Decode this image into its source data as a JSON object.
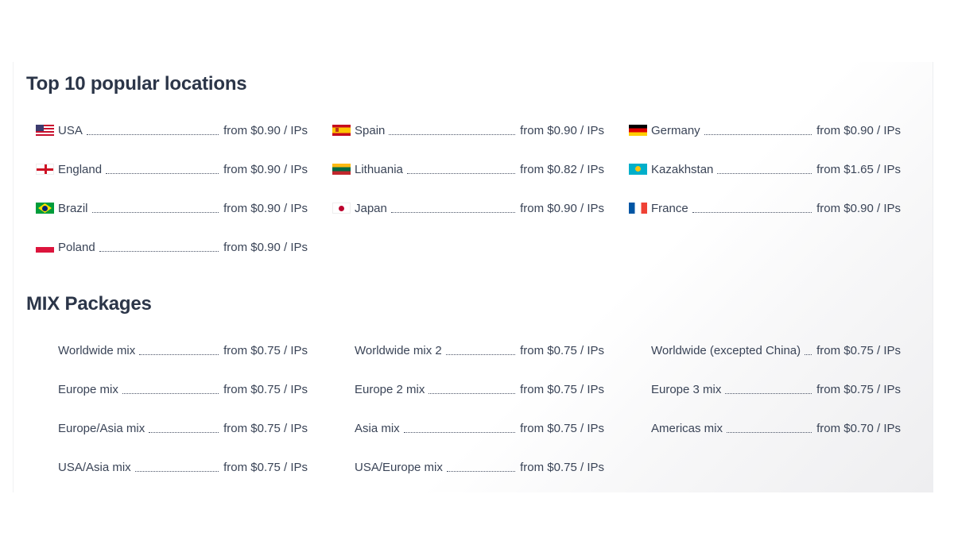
{
  "sections": {
    "top_title": "Top 10 popular locations",
    "mix_title": "MIX Packages"
  },
  "locations": [
    {
      "name": "USA",
      "price": "from $0.90 / IPs",
      "flag": "us-flag"
    },
    {
      "name": "Spain",
      "price": "from $0.90 / IPs",
      "flag": "es-flag"
    },
    {
      "name": "Germany",
      "price": "from $0.90 / IPs",
      "flag": "de-flag"
    },
    {
      "name": "England",
      "price": "from $0.90 / IPs",
      "flag": "gb-eng-flag"
    },
    {
      "name": "Lithuania",
      "price": "from $0.82 / IPs",
      "flag": "lt-flag"
    },
    {
      "name": "Kazakhstan",
      "price": "from $1.65 / IPs",
      "flag": "kz-flag"
    },
    {
      "name": "Brazil",
      "price": "from $0.90 / IPs",
      "flag": "br-flag"
    },
    {
      "name": "Japan",
      "price": "from $0.90 / IPs",
      "flag": "jp-flag"
    },
    {
      "name": "France",
      "price": "from $0.90 / IPs",
      "flag": "fr-flag"
    },
    {
      "name": "Poland",
      "price": "from $0.90 / IPs",
      "flag": "pl-flag"
    }
  ],
  "mixes": [
    {
      "name": "Worldwide mix",
      "price": "from $0.75 / IPs"
    },
    {
      "name": "Worldwide mix 2",
      "price": "from $0.75 / IPs"
    },
    {
      "name": "Worldwide (excepted China)",
      "price": "from $0.75 / IPs"
    },
    {
      "name": "Europe mix",
      "price": "from $0.75 / IPs"
    },
    {
      "name": "Europe 2 mix",
      "price": "from $0.75 / IPs"
    },
    {
      "name": "Europe 3 mix",
      "price": "from $0.75 / IPs"
    },
    {
      "name": "Europe/Asia mix",
      "price": "from $0.75 / IPs"
    },
    {
      "name": "Asia mix",
      "price": "from $0.75 / IPs"
    },
    {
      "name": "Americas mix",
      "price": "from $0.70 / IPs"
    },
    {
      "name": "USA/Asia mix",
      "price": "from $0.75 / IPs"
    },
    {
      "name": "USA/Europe mix",
      "price": "from $0.75 / IPs"
    }
  ]
}
